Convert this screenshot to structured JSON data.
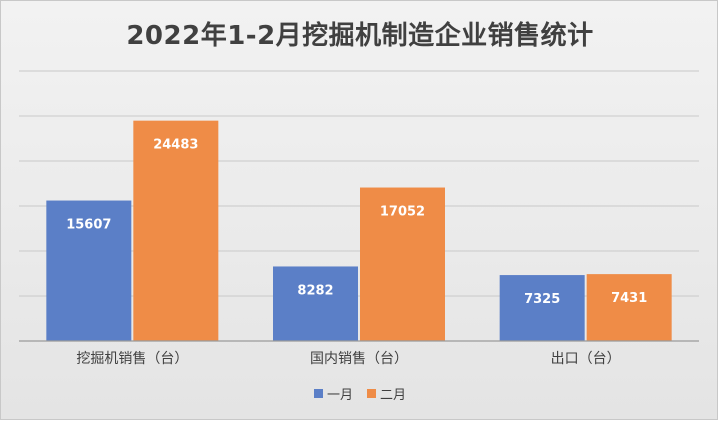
{
  "chart_data": {
    "type": "bar",
    "title": "2022年1-2月挖掘机制造企业销售统计",
    "categories": [
      "挖掘机销售（台）",
      "国内销售（台）",
      "出口（台）"
    ],
    "series": [
      {
        "name": "一月",
        "values": [
          15607,
          8282,
          7325
        ],
        "color": "#5b7fc7"
      },
      {
        "name": "二月",
        "values": [
          24483,
          17052,
          7431
        ],
        "color": "#ef8c47"
      }
    ],
    "ylim": [
      0,
      30000
    ],
    "grid": true,
    "legend": "bottom"
  }
}
